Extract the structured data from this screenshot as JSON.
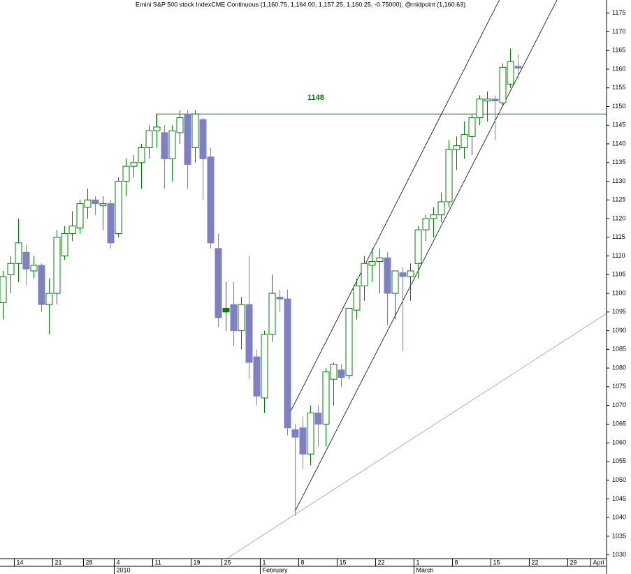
{
  "chart_data": {
    "type": "candlestick",
    "title": "Emini S&P 500 stock IndexCME Continuous (1,160.75, 1,164.00, 1,157.25, 1,160.25, -0.75000), @midpoint (1,160.63)",
    "x": [
      0,
      1,
      2,
      3,
      4,
      5,
      6,
      7,
      8,
      9,
      10,
      11,
      12,
      13,
      14,
      15,
      16,
      17,
      18,
      19,
      20,
      21,
      22,
      23,
      24,
      25,
      26,
      27,
      28,
      29,
      30,
      31,
      32,
      33,
      34,
      35,
      36,
      37,
      38,
      39,
      40,
      41,
      42,
      43,
      44,
      45,
      46,
      47,
      48,
      49,
      50,
      51,
      52,
      53,
      54,
      55,
      56,
      57,
      58,
      59,
      60,
      61,
      62,
      63,
      64,
      65,
      66,
      67
    ],
    "open": [
      1097.5,
      1105,
      1108,
      1111,
      1106,
      1107.5,
      1097,
      1100,
      1110,
      1116,
      1117.5,
      1123,
      1125,
      1123.5,
      1124,
      1116,
      1130,
      1134,
      1135,
      1139,
      1143.5,
      1143,
      1136,
      1143,
      1148,
      1139,
      1146.5,
      1136.5,
      1112,
      1095,
      1097,
      1090,
      1097,
      1083,
      1072,
      1089,
      1099,
      1098.5,
      1063.5,
      1064,
      1057,
      1068,
      1065,
      1077,
      1079.5,
      1078,
      1095.5,
      1102,
      1107.5,
      1108.5,
      1109.5,
      1100,
      1105.5,
      1104.5,
      1108,
      1117,
      1120,
      1121,
      1124.5,
      1138.5,
      1139,
      1142,
      1147,
      1151.5,
      1152,
      1151,
      1156,
      1160.75
    ],
    "high": [
      1106,
      1110,
      1120,
      1113,
      1110,
      1108,
      1104,
      1117,
      1118,
      1122,
      1125,
      1128,
      1126,
      1126,
      1125,
      1131,
      1136,
      1137,
      1140,
      1145,
      1148,
      1145,
      1145,
      1149,
      1149,
      1149,
      1147,
      1139,
      1116,
      1103,
      1103,
      1099,
      1110,
      1085,
      1090,
      1105,
      1101,
      1101,
      1065,
      1067,
      1070,
      1070,
      1080,
      1081.5,
      1081,
      1096,
      1104,
      1110,
      1112,
      1112,
      1111,
      1106,
      1107,
      1108,
      1118,
      1121,
      1123,
      1127,
      1141,
      1142,
      1146,
      1148,
      1153,
      1154,
      1153,
      1161.5,
      1165.5,
      1164
    ],
    "low": [
      1093,
      1100,
      1103,
      1102,
      1104,
      1095,
      1089,
      1097,
      1109,
      1114,
      1116,
      1120,
      1121,
      1117,
      1112,
      1115,
      1126,
      1131,
      1128,
      1136,
      1139,
      1128,
      1130,
      1140,
      1128,
      1135,
      1125,
      1112,
      1091,
      1090,
      1086,
      1085,
      1077,
      1070,
      1068,
      1087,
      1095,
      1062,
      1040.5,
      1053,
      1054,
      1059,
      1059,
      1070,
      1075,
      1077,
      1093,
      1098,
      1103,
      1100,
      1091.5,
      1093,
      1084.5,
      1098,
      1104,
      1114,
      1115,
      1119,
      1123,
      1133,
      1136,
      1137,
      1145,
      1146,
      1141,
      1150,
      1155,
      1157.25
    ],
    "close": [
      1104.5,
      1108,
      1113.5,
      1106.5,
      1107.5,
      1097,
      1100,
      1115,
      1116,
      1118,
      1124,
      1125,
      1124,
      1124,
      1113.5,
      1130,
      1134,
      1135,
      1139,
      1143.5,
      1144.5,
      1136,
      1143.5,
      1147,
      1134.5,
      1148,
      1136,
      1113.5,
      1093.5,
      1096,
      1090,
      1097,
      1081.5,
      1072.5,
      1089,
      1100,
      1098.5,
      1064,
      1061.5,
      1057,
      1068,
      1065,
      1079,
      1081,
      1077.5,
      1096,
      1102,
      1108,
      1108.5,
      1109.5,
      1100,
      1106,
      1104.5,
      1106,
      1117,
      1120,
      1121,
      1124.5,
      1138.5,
      1139.5,
      1142.5,
      1147,
      1152,
      1152,
      1151.5,
      1160.5,
      1162,
      1160.25
    ],
    "up_color": "#008000",
    "down_color": "#7f7fc6",
    "highlight": {
      "index": 29,
      "color": "#008000"
    },
    "xlim": [
      -0.36,
      78.55
    ],
    "ylim": [
      1029,
      1178.5
    ],
    "yticks": [
      1030,
      1035,
      1040,
      1045,
      1050,
      1055,
      1060,
      1065,
      1070,
      1075,
      1080,
      1085,
      1090,
      1095,
      1100,
      1105,
      1110,
      1115,
      1120,
      1125,
      1130,
      1135,
      1140,
      1145,
      1150,
      1155,
      1160,
      1165,
      1170,
      1175
    ],
    "xticks": [
      {
        "value": 2,
        "label": "14"
      },
      {
        "value": 7,
        "label": "21"
      },
      {
        "value": 11,
        "label": "28"
      },
      {
        "value": 15,
        "label": "4"
      },
      {
        "value": 20,
        "label": "11"
      },
      {
        "value": 25,
        "label": "19"
      },
      {
        "value": 29,
        "label": "25"
      },
      {
        "value": 34,
        "label": "1"
      },
      {
        "value": 39,
        "label": "8"
      },
      {
        "value": 44,
        "label": "15"
      },
      {
        "value": 49,
        "label": "22"
      },
      {
        "value": 54,
        "label": "1"
      },
      {
        "value": 59,
        "label": "8"
      },
      {
        "value": 64,
        "label": "15"
      },
      {
        "value": 69,
        "label": "22"
      },
      {
        "value": 74,
        "label": "29"
      },
      {
        "value": 77,
        "label": "Apri"
      }
    ],
    "month_ticks": [
      {
        "value": 15,
        "label": "2010"
      },
      {
        "value": 34,
        "label": "February"
      },
      {
        "value": 54,
        "label": "March"
      }
    ],
    "hline": {
      "value": 1148,
      "x_start": 20,
      "color": "#008000"
    },
    "lines": [
      {
        "color": "#000000",
        "x": [
          37.1,
          64.6
        ],
        "y": [
          1067,
          1178.5
        ]
      },
      {
        "color": "#000000",
        "x": [
          38,
          72.1
        ],
        "y": [
          1041.6,
          1178.5
        ]
      },
      {
        "color": "#a0a0a0",
        "x": [
          29.2,
          81.7
        ],
        "y": [
          1029.1,
          1098.8
        ]
      }
    ]
  }
}
